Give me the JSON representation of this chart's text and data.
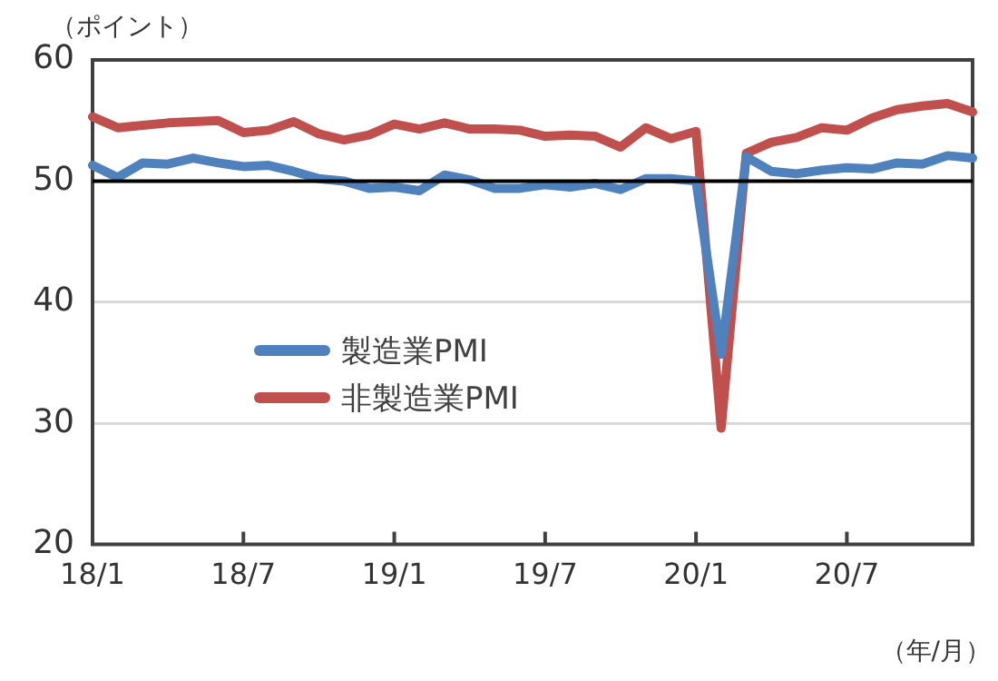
{
  "chart_data": {
    "type": "line",
    "ylabel": "（ポイント）",
    "xlabel": "（年/月）",
    "categories": [
      "18/1",
      null,
      null,
      null,
      null,
      null,
      "18/7",
      null,
      null,
      null,
      null,
      null,
      "19/1",
      null,
      null,
      null,
      null,
      null,
      "19/7",
      null,
      null,
      null,
      null,
      null,
      "20/1",
      null,
      null,
      null,
      null,
      null,
      "20/7",
      null,
      null,
      null,
      null,
      null
    ],
    "series": [
      {
        "name": "製造業PMI",
        "color": "#4f81bd",
        "values": [
          51.3,
          50.3,
          51.5,
          51.4,
          51.9,
          51.5,
          51.2,
          51.3,
          50.8,
          50.2,
          50.0,
          49.4,
          49.5,
          49.2,
          50.5,
          50.1,
          49.4,
          49.4,
          49.7,
          49.5,
          49.8,
          49.3,
          50.2,
          50.2,
          50.0,
          35.7,
          52.0,
          50.8,
          50.6,
          50.9,
          51.1,
          51.0,
          51.5,
          51.4,
          52.1,
          51.9
        ]
      },
      {
        "name": "非製造業PMI",
        "color": "#c0504d",
        "values": [
          55.3,
          54.4,
          54.6,
          54.8,
          54.9,
          55.0,
          54.0,
          54.2,
          54.9,
          53.9,
          53.4,
          53.8,
          54.7,
          54.3,
          54.8,
          54.3,
          54.3,
          54.2,
          53.7,
          53.8,
          53.7,
          52.8,
          54.4,
          53.5,
          54.1,
          29.6,
          52.3,
          53.2,
          53.6,
          54.4,
          54.2,
          55.2,
          55.9,
          56.2,
          56.4,
          55.7
        ]
      }
    ],
    "ylim": [
      20,
      60
    ],
    "yticks": [
      20,
      30,
      40,
      50,
      60
    ],
    "grid": "y",
    "legend": "center",
    "marker": "none",
    "line_style": "solid",
    "ref_lines": [
      {
        "axis": "y",
        "value": 50,
        "color": "#000000"
      }
    ]
  }
}
